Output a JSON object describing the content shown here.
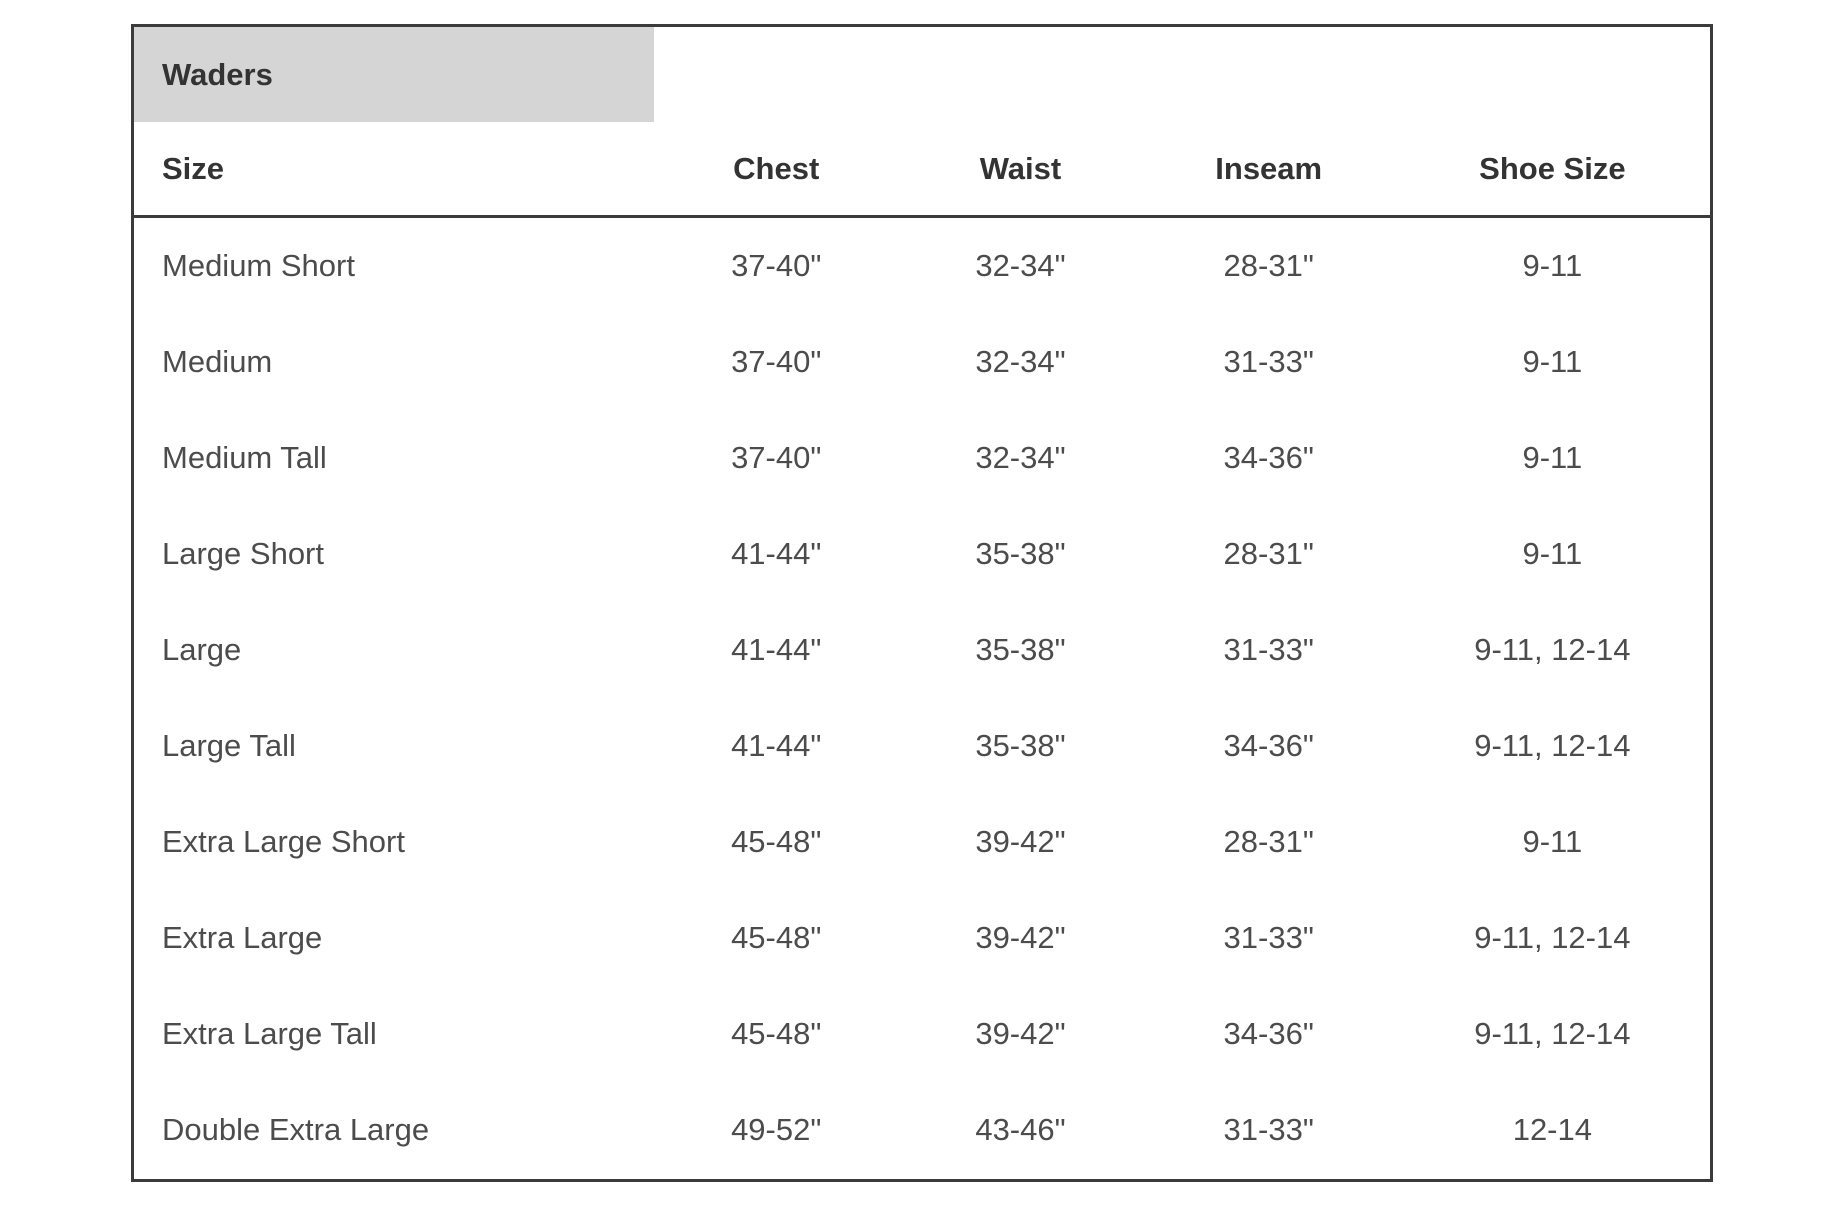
{
  "table": {
    "tab_label": "Waders",
    "columns": [
      "Size",
      "Chest",
      "Waist",
      "Inseam",
      "Shoe Size"
    ],
    "rows": [
      {
        "size": "Medium Short",
        "chest": "37-40\"",
        "waist": "32-34\"",
        "inseam": "28-31\"",
        "shoe_size": "9-11"
      },
      {
        "size": "Medium",
        "chest": "37-40\"",
        "waist": "32-34\"",
        "inseam": "31-33\"",
        "shoe_size": "9-11"
      },
      {
        "size": "Medium Tall",
        "chest": "37-40\"",
        "waist": "32-34\"",
        "inseam": "34-36\"",
        "shoe_size": "9-11"
      },
      {
        "size": "Large Short",
        "chest": "41-44\"",
        "waist": "35-38\"",
        "inseam": "28-31\"",
        "shoe_size": "9-11"
      },
      {
        "size": "Large",
        "chest": "41-44\"",
        "waist": "35-38\"",
        "inseam": "31-33\"",
        "shoe_size": "9-11, 12-14"
      },
      {
        "size": "Large Tall",
        "chest": "41-44\"",
        "waist": "35-38\"",
        "inseam": "34-36\"",
        "shoe_size": "9-11, 12-14"
      },
      {
        "size": "Extra Large Short",
        "chest": "45-48\"",
        "waist": "39-42\"",
        "inseam": "28-31\"",
        "shoe_size": "9-11"
      },
      {
        "size": "Extra Large",
        "chest": "45-48\"",
        "waist": "39-42\"",
        "inseam": "31-33\"",
        "shoe_size": "9-11, 12-14"
      },
      {
        "size": "Extra Large Tall",
        "chest": "45-48\"",
        "waist": "39-42\"",
        "inseam": "34-36\"",
        "shoe_size": "9-11, 12-14"
      },
      {
        "size": "Double Extra Large",
        "chest": "49-52\"",
        "waist": "43-46\"",
        "inseam": "31-33\"",
        "shoe_size": "12-14"
      }
    ],
    "colors": {
      "border": "#3b3b3b",
      "tab_background": "#d5d5d5",
      "header_text": "#333333",
      "body_text": "#4c4c4c",
      "page_background": "#ffffff"
    }
  }
}
